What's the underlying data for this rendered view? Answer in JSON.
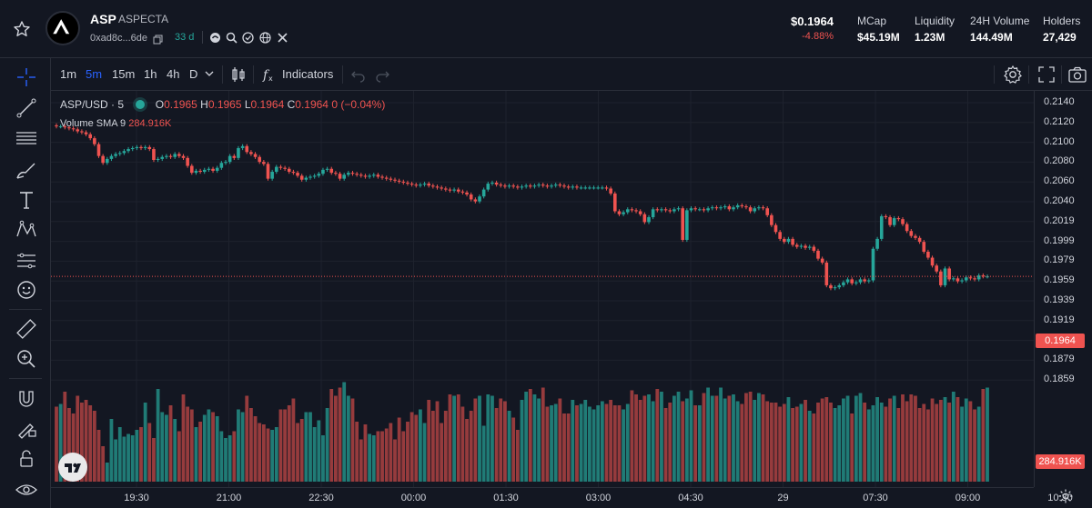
{
  "token": {
    "symbol": "ASP",
    "name": "ASPECTA",
    "address": "0xad8c...6de",
    "age": "33 d",
    "price": "$0.1964",
    "change": "-4.88%"
  },
  "stats": [
    {
      "label": "MCap",
      "value": "$45.19M"
    },
    {
      "label": "Liquidity",
      "value": "1.23M"
    },
    {
      "label": "24H Volume",
      "value": "144.49M"
    },
    {
      "label": "Holders",
      "value": "27,429"
    }
  ],
  "toolbar": {
    "timeframes": [
      "1m",
      "5m",
      "15m",
      "1h",
      "4h",
      "D"
    ],
    "active_timeframe": "5m",
    "indicators_label": "Indicators"
  },
  "legend": {
    "pair": "ASP/USD",
    "interval": "5",
    "o_label": "O",
    "o": "0.1965",
    "h_label": "H",
    "h": "0.1965",
    "l_label": "L",
    "l": "0.1964",
    "c_label": "C",
    "c": "0.1964",
    "chg": "0 (−0.04%)",
    "volume_label": "Volume",
    "sma_label": "SMA 9",
    "volume_value": "284.916K"
  },
  "price_axis": {
    "ticks": [
      "0.2140",
      "0.2120",
      "0.2100",
      "0.2080",
      "0.2060",
      "0.2040",
      "0.2019",
      "0.1999",
      "0.1979",
      "0.1959",
      "0.1939",
      "0.1919",
      "0.1899",
      "0.1879",
      "0.1859"
    ],
    "current_price": "0.1964",
    "volume_tag": "284.916K"
  },
  "time_axis": {
    "ticks": [
      "19:30",
      "21:00",
      "22:30",
      "00:00",
      "01:30",
      "03:00",
      "04:30",
      "29",
      "07:30",
      "09:00",
      "10:30"
    ]
  },
  "colors": {
    "up": "#26a69a",
    "down": "#ef5350",
    "accent": "#2962ff",
    "background": "#131722"
  },
  "chart_data": {
    "type": "candlestick",
    "interval": "5m",
    "ylim": [
      0.1859,
      0.214
    ],
    "close": [
      0.2116,
      0.2116,
      0.2115,
      0.2114,
      0.2113,
      0.2111,
      0.211,
      0.2108,
      0.2104,
      0.2098,
      0.2086,
      0.2079,
      0.2083,
      0.2086,
      0.2088,
      0.2089,
      0.2091,
      0.2093,
      0.2094,
      0.2095,
      0.2094,
      0.2095,
      0.2093,
      0.2082,
      0.2083,
      0.2085,
      0.2086,
      0.2085,
      0.2088,
      0.2086,
      0.2084,
      0.2076,
      0.2069,
      0.2071,
      0.207,
      0.2072,
      0.2073,
      0.2071,
      0.2074,
      0.2079,
      0.208,
      0.2086,
      0.2084,
      0.2094,
      0.2096,
      0.209,
      0.2088,
      0.2085,
      0.208,
      0.2078,
      0.2063,
      0.207,
      0.2075,
      0.2074,
      0.2073,
      0.207,
      0.2069,
      0.2066,
      0.2062,
      0.2064,
      0.2065,
      0.2066,
      0.2068,
      0.2072,
      0.2073,
      0.2069,
      0.2068,
      0.2063,
      0.2067,
      0.2069,
      0.2068,
      0.2067,
      0.2066,
      0.2065,
      0.2066,
      0.2067,
      0.2065,
      0.2064,
      0.2063,
      0.2062,
      0.2061,
      0.206,
      0.2059,
      0.2058,
      0.2057,
      0.2056,
      0.2057,
      0.2058,
      0.2056,
      0.2055,
      0.2054,
      0.2053,
      0.2052,
      0.2051,
      0.2052,
      0.205,
      0.2049,
      0.2047,
      0.2042,
      0.204,
      0.2045,
      0.2052,
      0.2058,
      0.2059,
      0.2057,
      0.2056,
      0.2055,
      0.2056,
      0.2055,
      0.2054,
      0.2055,
      0.2056,
      0.2055,
      0.2056,
      0.2057,
      0.2056,
      0.2055,
      0.2056,
      0.2057,
      0.2056,
      0.2055,
      0.2054,
      0.2055,
      0.2054,
      0.2054,
      0.2054,
      0.2054,
      0.2054,
      0.2054,
      0.2054,
      0.2053,
      0.2048,
      0.203,
      0.2027,
      0.2029,
      0.2032,
      0.2031,
      0.203,
      0.2027,
      0.2019,
      0.2024,
      0.2032,
      0.2031,
      0.2032,
      0.2031,
      0.203,
      0.2032,
      0.2033,
      0.2001,
      0.2031,
      0.2033,
      0.2032,
      0.2032,
      0.2031,
      0.2033,
      0.2034,
      0.2033,
      0.2034,
      0.2035,
      0.2032,
      0.2034,
      0.2036,
      0.2035,
      0.2034,
      0.203,
      0.2033,
      0.2034,
      0.2033,
      0.2026,
      0.2016,
      0.2009,
      0.2002,
      0.1999,
      0.2002,
      0.1996,
      0.1994,
      0.1995,
      0.1993,
      0.1994,
      0.199,
      0.1982,
      0.1978,
      0.1955,
      0.1952,
      0.1953,
      0.1955,
      0.1958,
      0.1961,
      0.1957,
      0.1958,
      0.1961,
      0.1959,
      0.196,
      0.1992,
      0.2002,
      0.2025,
      0.2024,
      0.2016,
      0.2023,
      0.2022,
      0.2017,
      0.201,
      0.2005,
      0.2003,
      0.1999,
      0.1989,
      0.1983,
      0.1975,
      0.1969,
      0.1955,
      0.1972,
      0.1961,
      0.1962,
      0.1959,
      0.196,
      0.1963,
      0.1962,
      0.1961,
      0.1965,
      0.1964,
      0.1964
    ],
    "volume_relative": [
      0.55,
      0.57,
      0.66,
      0.54,
      0.5,
      0.63,
      0.58,
      0.6,
      0.56,
      0.52,
      0.38,
      0.26,
      0.14,
      0.46,
      0.31,
      0.4,
      0.33,
      0.35,
      0.34,
      0.38,
      0.4,
      0.58,
      0.43,
      0.32,
      0.68,
      0.51,
      0.49,
      0.56,
      0.46,
      0.37,
      0.64,
      0.55,
      0.53,
      0.4,
      0.44,
      0.49,
      0.53,
      0.51,
      0.48,
      0.37,
      0.32,
      0.34,
      0.37,
      0.53,
      0.51,
      0.63,
      0.54,
      0.48,
      0.43,
      0.42,
      0.39,
      0.38,
      0.4,
      0.53,
      0.53,
      0.56,
      0.61,
      0.43,
      0.46,
      0.51,
      0.51,
      0.4,
      0.45,
      0.34,
      0.54,
      0.68,
      0.63,
      0.69,
      0.73,
      0.63,
      0.61,
      0.44,
      0.31,
      0.42,
      0.35,
      0.34,
      0.37,
      0.37,
      0.39,
      0.43,
      0.31,
      0.47,
      0.37,
      0.44,
      0.51,
      0.49,
      0.53,
      0.43,
      0.6,
      0.52,
      0.59,
      0.43,
      0.52,
      0.64,
      0.63,
      0.64,
      0.55,
      0.46,
      0.52,
      0.61,
      0.63,
      0.41,
      0.64,
      0.63,
      0.54,
      0.61,
      0.59,
      0.52,
      0.47,
      0.38,
      0.6,
      0.66,
      0.68,
      0.64,
      0.61,
      0.69,
      0.55,
      0.56,
      0.57,
      0.61,
      0.5,
      0.5,
      0.6,
      0.56,
      0.57,
      0.6,
      0.55,
      0.53,
      0.56,
      0.59,
      0.57,
      0.6,
      0.56,
      0.56,
      0.53,
      0.57,
      0.67,
      0.64,
      0.6,
      0.63,
      0.64,
      0.59,
      0.68,
      0.66,
      0.54,
      0.58,
      0.63,
      0.66,
      0.59,
      0.61,
      0.67,
      0.56,
      0.56,
      0.65,
      0.69,
      0.63,
      0.63,
      0.69,
      0.61,
      0.63,
      0.64,
      0.59,
      0.57,
      0.65,
      0.66,
      0.6,
      0.65,
      0.64,
      0.59,
      0.58,
      0.58,
      0.55,
      0.57,
      0.62,
      0.54,
      0.55,
      0.57,
      0.6,
      0.52,
      0.5,
      0.58,
      0.61,
      0.62,
      0.58,
      0.54,
      0.56,
      0.61,
      0.63,
      0.5,
      0.63,
      0.65,
      0.58,
      0.53,
      0.56,
      0.62,
      0.58,
      0.55,
      0.61,
      0.63,
      0.54,
      0.64,
      0.59,
      0.64,
      0.63,
      0.54,
      0.57,
      0.53,
      0.61,
      0.57,
      0.6,
      0.62,
      0.58,
      0.66,
      0.62,
      0.55,
      0.61,
      0.59,
      0.53,
      0.55,
      0.68,
      0.69,
      0.28
    ]
  }
}
